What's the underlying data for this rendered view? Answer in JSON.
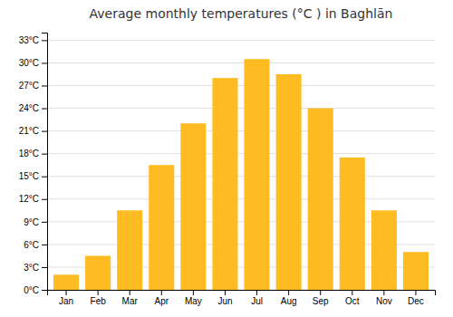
{
  "chart_data": {
    "type": "bar",
    "title": "Average monthly temperatures (°C ) in Baghlān",
    "categories": [
      "Jan",
      "Feb",
      "Mar",
      "Apr",
      "May",
      "Jun",
      "Jul",
      "Aug",
      "Sep",
      "Oct",
      "Nov",
      "Dec"
    ],
    "values": [
      2.0,
      4.5,
      10.5,
      16.5,
      22.0,
      28.0,
      30.5,
      28.5,
      24.0,
      17.5,
      10.5,
      5.0
    ],
    "color": "#FFBB22",
    "ylim": [
      0,
      34
    ],
    "yticks": [
      {
        "value": 0,
        "label": "0°C"
      },
      {
        "value": 3,
        "label": "3°C"
      },
      {
        "value": 6,
        "label": "6°C"
      },
      {
        "value": 9,
        "label": "9°C"
      },
      {
        "value": 12,
        "label": "12°C"
      },
      {
        "value": 15,
        "label": "15°C"
      },
      {
        "value": 18,
        "label": "18°C"
      },
      {
        "value": 21,
        "label": "21°C"
      },
      {
        "value": 24,
        "label": "24°C"
      },
      {
        "value": 27,
        "label": "27°C"
      },
      {
        "value": 30,
        "label": "30°C"
      },
      {
        "value": 33,
        "label": "33°C"
      }
    ],
    "grid": true
  }
}
